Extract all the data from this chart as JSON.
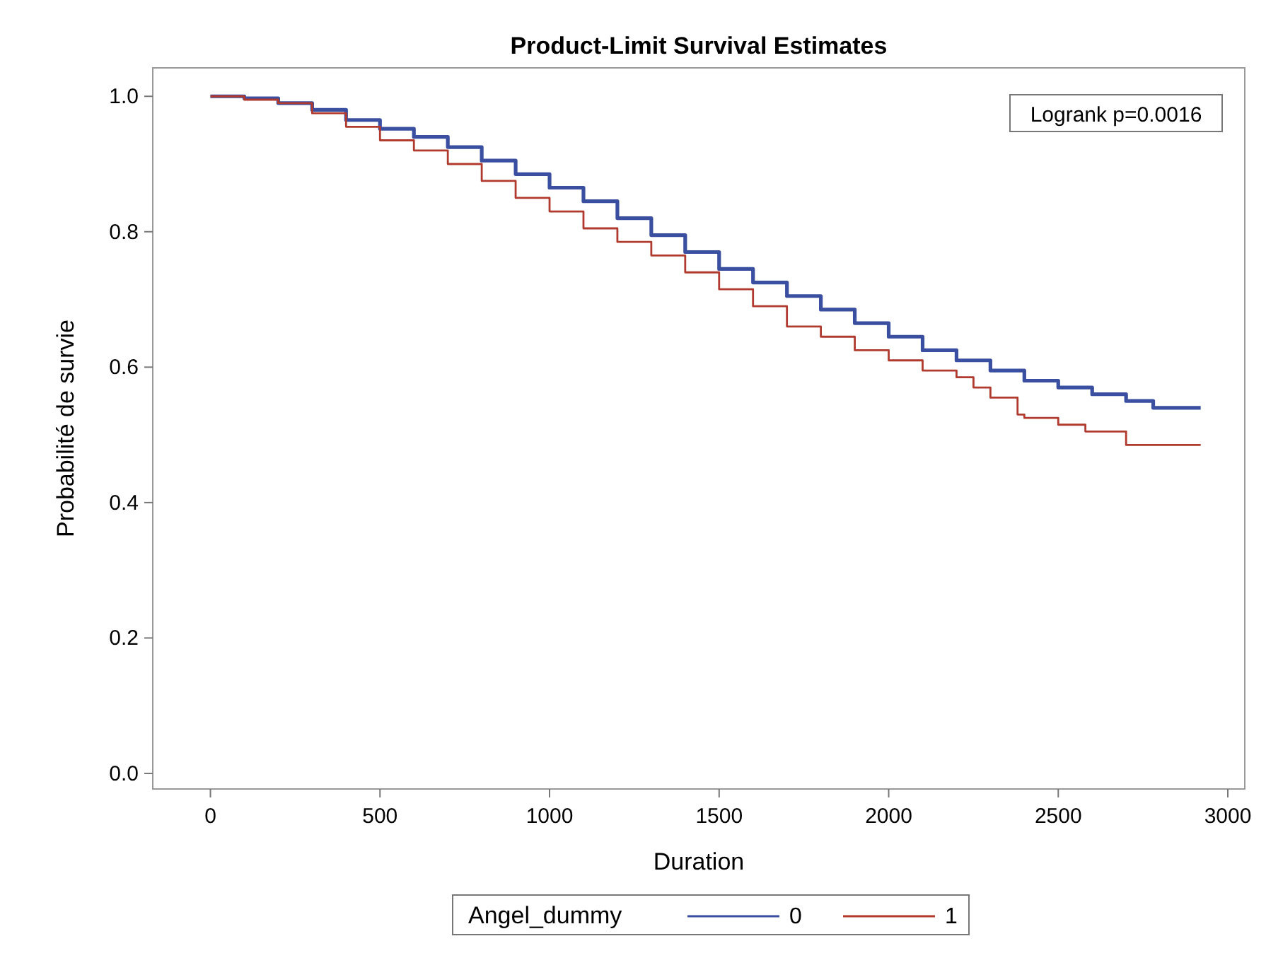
{
  "chart_data": {
    "type": "step",
    "title": "Product-Limit Survival Estimates",
    "xlabel": "Duration",
    "ylabel": "Probabilité de survie",
    "legend_title": "Angel_dummy",
    "legend": "bottom",
    "annotations": [
      "Logrank p=0.0016"
    ],
    "xlim": [
      -170,
      3050
    ],
    "xticks": [
      0,
      500,
      1000,
      1500,
      2000,
      2500,
      3000
    ],
    "ylim": [
      -0.023,
      1.042
    ],
    "yticks": [
      {
        "value": 0,
        "label": "0.0"
      },
      0.2,
      0.4,
      0.6,
      0.8,
      {
        "value": 1,
        "label": "1.0"
      }
    ],
    "grid": false,
    "series": [
      {
        "name": "0",
        "color": "#3a4fa0",
        "x": [
          0,
          100,
          200,
          300,
          400,
          500,
          600,
          700,
          800,
          900,
          1000,
          1100,
          1200,
          1300,
          1400,
          1500,
          1600,
          1700,
          1800,
          1900,
          2000,
          2100,
          2200,
          2300,
          2400,
          2500,
          2600,
          2700,
          2780,
          2920
        ],
        "values": [
          1.0,
          0.997,
          0.99,
          0.98,
          0.965,
          0.952,
          0.94,
          0.925,
          0.905,
          0.885,
          0.865,
          0.845,
          0.82,
          0.795,
          0.77,
          0.745,
          0.725,
          0.705,
          0.685,
          0.665,
          0.645,
          0.625,
          0.61,
          0.595,
          0.58,
          0.57,
          0.56,
          0.55,
          0.54,
          0.54
        ]
      },
      {
        "name": "1",
        "color": "#b03a2e",
        "x": [
          0,
          100,
          200,
          300,
          400,
          500,
          600,
          700,
          800,
          900,
          1000,
          1100,
          1200,
          1300,
          1400,
          1500,
          1600,
          1700,
          1800,
          1900,
          2000,
          2100,
          2200,
          2250,
          2300,
          2380,
          2400,
          2500,
          2580,
          2700,
          2920
        ],
        "values": [
          1.0,
          0.995,
          0.99,
          0.975,
          0.955,
          0.935,
          0.92,
          0.9,
          0.875,
          0.85,
          0.83,
          0.805,
          0.785,
          0.765,
          0.74,
          0.715,
          0.69,
          0.66,
          0.645,
          0.625,
          0.61,
          0.595,
          0.585,
          0.57,
          0.555,
          0.53,
          0.525,
          0.515,
          0.505,
          0.485,
          0.485
        ]
      }
    ]
  }
}
